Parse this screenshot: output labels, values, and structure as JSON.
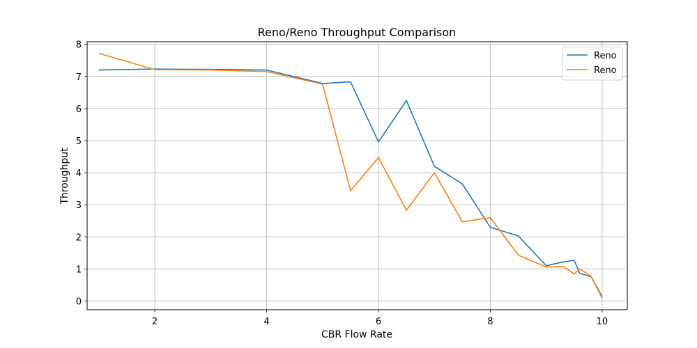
{
  "chart_data": {
    "type": "line",
    "title": "Reno/Reno Throughput Comparison",
    "xlabel": "CBR Flow Rate",
    "ylabel": "Throughput",
    "xlim": [
      0.79,
      10.45
    ],
    "ylim": [
      -0.27,
      8.08
    ],
    "xticks": [
      2,
      4,
      6,
      8,
      10
    ],
    "yticks": [
      0,
      1,
      2,
      3,
      4,
      5,
      6,
      7,
      8
    ],
    "grid": true,
    "legend_position": "top-right",
    "series": [
      {
        "name": "Reno",
        "color": "#1f77b4",
        "x": [
          1,
          2,
          3,
          4,
          5,
          5.5,
          6,
          6.5,
          7,
          7.5,
          8,
          8.5,
          9,
          9.3,
          9.5,
          9.6,
          9.8,
          10
        ],
        "y": [
          7.2,
          7.23,
          7.22,
          7.2,
          6.78,
          6.83,
          4.96,
          6.25,
          4.2,
          3.65,
          2.3,
          2.03,
          1.1,
          1.22,
          1.27,
          0.86,
          0.76,
          0.14
        ]
      },
      {
        "name": "Reno",
        "color": "#ff7f0e",
        "x": [
          1,
          2,
          3,
          4,
          5,
          5.5,
          6,
          6.5,
          7,
          7.5,
          8,
          8.5,
          9,
          9.3,
          9.5,
          9.6,
          9.8,
          10
        ],
        "y": [
          7.72,
          7.21,
          7.2,
          7.15,
          6.76,
          3.44,
          4.47,
          2.83,
          4.0,
          2.47,
          2.6,
          1.43,
          1.06,
          1.08,
          0.85,
          1.0,
          0.77,
          0.09
        ]
      }
    ]
  }
}
